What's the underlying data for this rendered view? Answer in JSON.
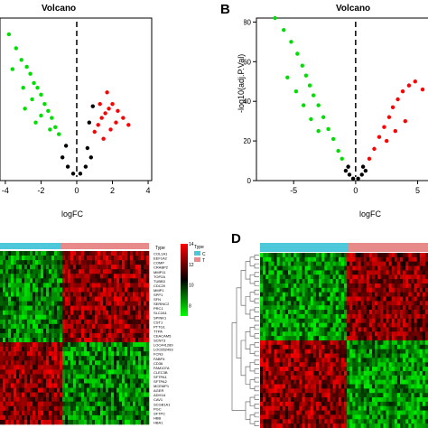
{
  "colors": {
    "up": "#ff0000",
    "down": "#00dd00",
    "not_significant": "#000000",
    "heat_low": "#00ff00",
    "heat_mid": "#000000",
    "heat_high": "#ff0000",
    "type_C": "#4dc7da",
    "type_T": "#e98a8a"
  },
  "panels": {
    "b_letter": "B",
    "d_letter": "D"
  },
  "chart_data": [
    {
      "id": "volcano-a",
      "type": "scatter",
      "title": "Volcano",
      "xlabel": "logFC",
      "ylabel": "",
      "xticks": [
        "-4",
        "-2",
        "0",
        "2",
        "4"
      ],
      "xtick_values": [
        -4,
        -2,
        0,
        2,
        4
      ],
      "yticks": [],
      "xlim": [
        -4.3,
        4.2
      ],
      "ylim": [
        0,
        70
      ],
      "threshold_x": 0,
      "series": [
        {
          "group": "down",
          "points": [
            [
              -3.8,
              63
            ],
            [
              -3.4,
              57
            ],
            [
              -3.1,
              52
            ],
            [
              -2.8,
              49
            ],
            [
              -2.6,
              46
            ],
            [
              -2.4,
              42
            ],
            [
              -2.2,
              40
            ],
            [
              -2.0,
              37
            ],
            [
              -1.8,
              33
            ],
            [
              -1.6,
              30
            ],
            [
              -1.4,
              27
            ],
            [
              -1.2,
              23
            ],
            [
              -1.0,
              20
            ],
            [
              -3.0,
              40
            ],
            [
              -2.5,
              35
            ],
            [
              -2.0,
              28
            ],
            [
              -1.5,
              22
            ],
            [
              -3.6,
              48
            ],
            [
              -2.9,
              31
            ],
            [
              -2.3,
              25
            ]
          ]
        },
        {
          "group": "up",
          "points": [
            [
              1.0,
              21
            ],
            [
              1.2,
              24
            ],
            [
              1.4,
              27
            ],
            [
              1.6,
              29
            ],
            [
              1.8,
              31
            ],
            [
              2.0,
              33
            ],
            [
              2.3,
              30
            ],
            [
              2.6,
              27
            ],
            [
              1.5,
              18
            ],
            [
              1.9,
              22
            ],
            [
              2.2,
              25
            ],
            [
              1.3,
              33
            ],
            [
              1.7,
              38
            ],
            [
              2.9,
              24
            ]
          ]
        },
        {
          "group": "not_significant",
          "points": [
            [
              -0.8,
              10
            ],
            [
              -0.5,
              6
            ],
            [
              -0.2,
              3
            ],
            [
              0.2,
              3
            ],
            [
              0.5,
              6
            ],
            [
              0.8,
              10
            ],
            [
              -0.6,
              15
            ],
            [
              0.6,
              14
            ],
            [
              0.9,
              32
            ],
            [
              0.7,
              25
            ]
          ]
        }
      ]
    },
    {
      "id": "volcano-b",
      "type": "scatter",
      "title": "Volcano",
      "xlabel": "logFC",
      "ylabel": "-log10(adj.P.Val)",
      "xticks": [
        "-5",
        "0",
        "5"
      ],
      "xtick_values": [
        -5,
        0,
        5
      ],
      "yticks": [
        "0",
        "20",
        "40",
        "60",
        "80"
      ],
      "ytick_values": [
        0,
        20,
        40,
        60,
        80
      ],
      "xlim": [
        -8,
        7
      ],
      "ylim": [
        0,
        82
      ],
      "threshold_x": 0,
      "series": [
        {
          "group": "down",
          "points": [
            [
              -6.5,
              82
            ],
            [
              -5.8,
              76
            ],
            [
              -5.2,
              70
            ],
            [
              -4.7,
              64
            ],
            [
              -4.3,
              58
            ],
            [
              -4.0,
              53
            ],
            [
              -3.7,
              48
            ],
            [
              -3.4,
              43
            ],
            [
              -3.0,
              38
            ],
            [
              -2.6,
              32
            ],
            [
              -2.2,
              26
            ],
            [
              -1.8,
              21
            ],
            [
              -1.4,
              15
            ],
            [
              -1.1,
              11
            ],
            [
              -5.5,
              52
            ],
            [
              -4.8,
              45
            ],
            [
              -4.2,
              38
            ],
            [
              -3.6,
              31
            ],
            [
              -3.0,
              25
            ]
          ]
        },
        {
          "group": "up",
          "points": [
            [
              1.1,
              11
            ],
            [
              1.5,
              16
            ],
            [
              1.9,
              22
            ],
            [
              2.3,
              27
            ],
            [
              2.7,
              32
            ],
            [
              3.0,
              37
            ],
            [
              3.4,
              41
            ],
            [
              3.8,
              45
            ],
            [
              4.3,
              48
            ],
            [
              4.8,
              50
            ],
            [
              5.4,
              46
            ],
            [
              2.5,
              20
            ],
            [
              3.2,
              25
            ],
            [
              4.0,
              30
            ]
          ]
        },
        {
          "group": "not_significant",
          "points": [
            [
              -0.8,
              5
            ],
            [
              -0.5,
              3
            ],
            [
              -0.2,
              1
            ],
            [
              0.2,
              1
            ],
            [
              0.5,
              3
            ],
            [
              0.8,
              5
            ],
            [
              -0.6,
              7
            ],
            [
              0.6,
              7
            ]
          ]
        }
      ]
    },
    {
      "id": "heatmap-c",
      "type": "heatmap",
      "legend_title": "Type",
      "legend_labels": [
        "C",
        "T"
      ],
      "scale_ticks": [
        "14",
        "12",
        "10",
        "8"
      ],
      "scale_values": [
        14,
        12,
        10,
        8
      ],
      "genes": [
        "COL1A1",
        "EEF1A2",
        "COMP",
        "CRABP2",
        "MMP11",
        "TOP2A",
        "TUBB3",
        "CDC20",
        "MMP1",
        "SPP1",
        "SFN",
        "SERINC2",
        "PRC1",
        "SLC2A1",
        "SPINK1",
        "CST1",
        "PTTG1",
        "TTPA",
        "CEACAM5",
        "SCNT3",
        "LOC441289",
        "LOC652493",
        "FCN3",
        "FABP4",
        "CD36",
        "FAM107A",
        "CLEC3B",
        "SFTPA1",
        "SFTPA2",
        "MCEMP1",
        "AGER",
        "ADH1A",
        "CAV1",
        "SCGB1A1",
        "PGC",
        "SFTPC",
        "HBB",
        "HBA1"
      ]
    },
    {
      "id": "heatmap-d",
      "type": "heatmap",
      "legend_title": "",
      "legend_labels": [],
      "scale_ticks": [],
      "genes": []
    }
  ]
}
